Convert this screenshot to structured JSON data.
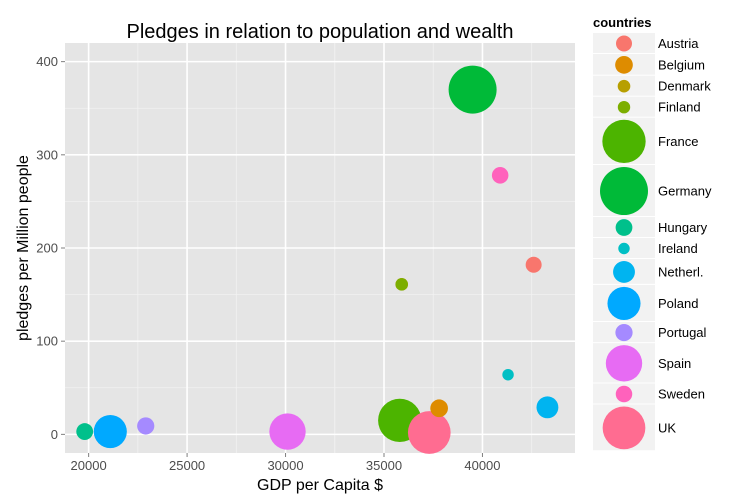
{
  "chart_data": {
    "type": "scatter",
    "title": "Pledges in relation to population and wealth",
    "xlabel": "GDP per Capita $",
    "ylabel": "pledges per Million people",
    "xlim": [
      18800,
      44700
    ],
    "ylim": [
      -20,
      420
    ],
    "x_ticks": [
      20000,
      25000,
      30000,
      35000,
      40000
    ],
    "y_ticks": [
      0,
      100,
      200,
      300,
      400
    ],
    "grid": true,
    "legend_title": "countries",
    "legend_position": "right",
    "series": [
      {
        "name": "Austria",
        "x": 42600,
        "y": 182,
        "size": 9000,
        "color": "#F8766D"
      },
      {
        "name": "Belgium",
        "x": 37800,
        "y": 28,
        "size": 11000,
        "color": "#DE8C00"
      },
      {
        "name": "Denmark",
        "x": 35900,
        "y": 161,
        "size": 5600,
        "color": "#B79F00"
      },
      {
        "name": "Finland",
        "x": 35900,
        "y": 161,
        "size": 5400,
        "color": "#7CAE00"
      },
      {
        "name": "France",
        "x": 35800,
        "y": 15,
        "size": 66000,
        "color": "#4CB400"
      },
      {
        "name": "Germany",
        "x": 39500,
        "y": 370,
        "size": 81000,
        "color": "#00BA38"
      },
      {
        "name": "Hungary",
        "x": 19800,
        "y": 3,
        "size": 9900,
        "color": "#00C08B"
      },
      {
        "name": "Ireland",
        "x": 41300,
        "y": 64,
        "size": 4600,
        "color": "#00BFC4"
      },
      {
        "name": "Netherl.",
        "x": 43300,
        "y": 29,
        "size": 16800,
        "color": "#00B4F0"
      },
      {
        "name": "Poland",
        "x": 21100,
        "y": 3,
        "size": 38500,
        "color": "#00A9FF"
      },
      {
        "name": "Portugal",
        "x": 22900,
        "y": 9,
        "size": 10400,
        "color": "#A58AFF"
      },
      {
        "name": "Spain",
        "x": 30100,
        "y": 3,
        "size": 46500,
        "color": "#E76BF3"
      },
      {
        "name": "Sweden",
        "x": 40900,
        "y": 278,
        "size": 9600,
        "color": "#FF62BC"
      },
      {
        "name": "UK",
        "x": 37300,
        "y": 2,
        "size": 64100,
        "color": "#FF6C91"
      }
    ]
  }
}
